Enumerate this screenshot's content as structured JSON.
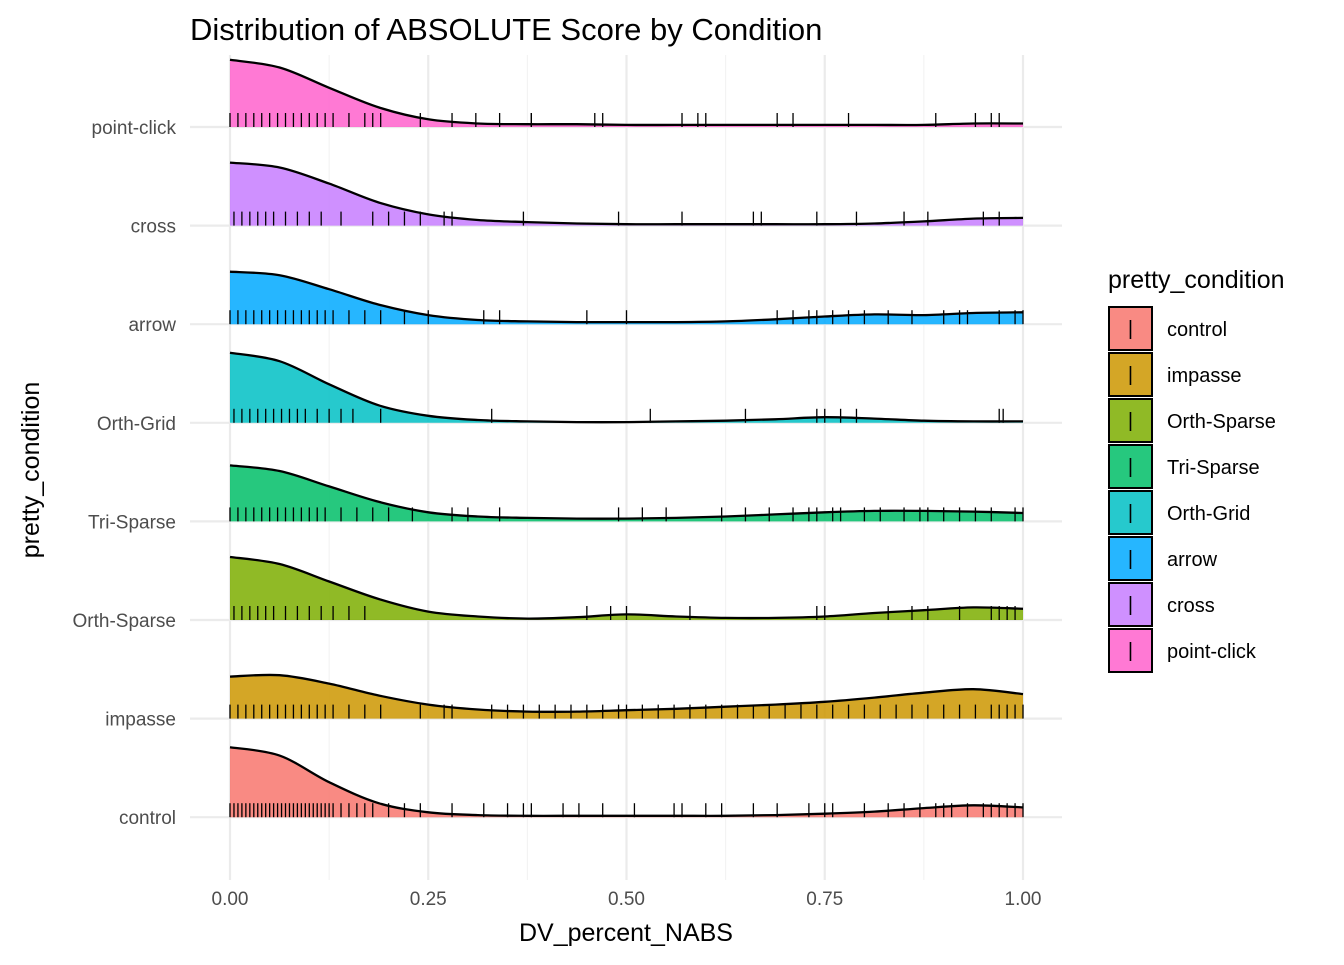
{
  "chart_data": {
    "type": "density_ridgeline",
    "title": "Distribution of ABSOLUTE Score by Condition",
    "xlabel": "DV_percent_NABS",
    "ylabel": "pretty_condition",
    "xlim": [
      0,
      1
    ],
    "x_ticks": [
      "0.00",
      "0.25",
      "0.50",
      "0.75",
      "1.00"
    ],
    "x_tick_values": [
      0,
      0.25,
      0.5,
      0.75,
      1
    ],
    "grid": true,
    "legend": {
      "title": "pretty_condition",
      "position": "right",
      "glyph": "|",
      "entries": [
        "control",
        "impasse",
        "Orth-Sparse",
        "Tri-Sparse",
        "Orth-Grid",
        "arrow",
        "cross",
        "point-click"
      ]
    },
    "x_grid": [
      0,
      0.0625,
      0.125,
      0.1875,
      0.25,
      0.3125,
      0.375,
      0.4375,
      0.5,
      0.5625,
      0.625,
      0.6875,
      0.75,
      0.8125,
      0.875,
      0.9375,
      1
    ],
    "series": [
      {
        "name": "control",
        "color": "#F8766D",
        "density": [
          1.0,
          0.88,
          0.5,
          0.2,
          0.07,
          0.03,
          0.02,
          0.02,
          0.02,
          0.02,
          0.02,
          0.03,
          0.05,
          0.08,
          0.13,
          0.17,
          0.14
        ],
        "rug": [
          0,
          0.005,
          0.01,
          0.015,
          0.02,
          0.025,
          0.03,
          0.035,
          0.04,
          0.045,
          0.05,
          0.055,
          0.06,
          0.065,
          0.07,
          0.075,
          0.08,
          0.085,
          0.09,
          0.095,
          0.1,
          0.105,
          0.11,
          0.115,
          0.12,
          0.125,
          0.13,
          0.14,
          0.15,
          0.16,
          0.17,
          0.18,
          0.2,
          0.22,
          0.24,
          0.28,
          0.32,
          0.35,
          0.37,
          0.38,
          0.42,
          0.44,
          0.47,
          0.51,
          0.56,
          0.57,
          0.6,
          0.62,
          0.66,
          0.69,
          0.73,
          0.75,
          0.76,
          0.8,
          0.83,
          0.85,
          0.87,
          0.89,
          0.9,
          0.91,
          0.93,
          0.95,
          0.96,
          0.97,
          0.98,
          0.99,
          1.0
        ]
      },
      {
        "name": "impasse",
        "color": "#CD9600",
        "density": [
          0.6,
          0.62,
          0.5,
          0.33,
          0.2,
          0.13,
          0.1,
          0.1,
          0.12,
          0.14,
          0.17,
          0.2,
          0.24,
          0.3,
          0.37,
          0.42,
          0.35
        ],
        "rug": [
          0,
          0.01,
          0.02,
          0.03,
          0.04,
          0.05,
          0.06,
          0.07,
          0.08,
          0.09,
          0.1,
          0.11,
          0.12,
          0.13,
          0.15,
          0.17,
          0.19,
          0.24,
          0.27,
          0.28,
          0.33,
          0.35,
          0.37,
          0.39,
          0.41,
          0.43,
          0.45,
          0.47,
          0.49,
          0.5,
          0.52,
          0.54,
          0.56,
          0.58,
          0.6,
          0.62,
          0.64,
          0.66,
          0.68,
          0.7,
          0.72,
          0.74,
          0.76,
          0.78,
          0.8,
          0.82,
          0.84,
          0.86,
          0.88,
          0.9,
          0.92,
          0.94,
          0.96,
          0.97,
          0.98,
          0.99,
          1.0
        ]
      },
      {
        "name": "Orth-Sparse",
        "color": "#7CAE00",
        "density": [
          0.9,
          0.8,
          0.55,
          0.3,
          0.12,
          0.05,
          0.02,
          0.04,
          0.08,
          0.05,
          0.03,
          0.03,
          0.05,
          0.1,
          0.14,
          0.18,
          0.16
        ],
        "rug": [
          0.005,
          0.015,
          0.025,
          0.035,
          0.045,
          0.055,
          0.07,
          0.085,
          0.1,
          0.115,
          0.13,
          0.15,
          0.17,
          0.45,
          0.48,
          0.5,
          0.58,
          0.74,
          0.75,
          0.83,
          0.86,
          0.88,
          0.92,
          0.96,
          0.97,
          0.98,
          0.99
        ]
      },
      {
        "name": "Tri-Sparse",
        "color": "#00BE67",
        "density": [
          0.8,
          0.72,
          0.5,
          0.28,
          0.13,
          0.07,
          0.05,
          0.04,
          0.04,
          0.05,
          0.07,
          0.1,
          0.13,
          0.15,
          0.15,
          0.14,
          0.12
        ],
        "rug": [
          0,
          0.01,
          0.02,
          0.03,
          0.04,
          0.05,
          0.06,
          0.07,
          0.08,
          0.09,
          0.1,
          0.11,
          0.12,
          0.14,
          0.16,
          0.18,
          0.2,
          0.23,
          0.28,
          0.3,
          0.34,
          0.49,
          0.52,
          0.55,
          0.62,
          0.65,
          0.68,
          0.71,
          0.73,
          0.74,
          0.76,
          0.77,
          0.8,
          0.82,
          0.85,
          0.87,
          0.88,
          0.9,
          0.92,
          0.94,
          0.96,
          0.99,
          1.0
        ]
      },
      {
        "name": "Orth-Grid",
        "color": "#00BFC4",
        "density": [
          1.0,
          0.88,
          0.55,
          0.25,
          0.1,
          0.04,
          0.02,
          0.01,
          0.01,
          0.02,
          0.03,
          0.05,
          0.08,
          0.06,
          0.03,
          0.02,
          0.02
        ],
        "rug": [
          0.005,
          0.015,
          0.025,
          0.035,
          0.045,
          0.055,
          0.065,
          0.075,
          0.085,
          0.095,
          0.11,
          0.125,
          0.14,
          0.155,
          0.19,
          0.33,
          0.53,
          0.65,
          0.74,
          0.75,
          0.77,
          0.79,
          0.97,
          0.975
        ]
      },
      {
        "name": "arrow",
        "color": "#00A9FF",
        "density": [
          0.75,
          0.7,
          0.5,
          0.28,
          0.13,
          0.06,
          0.04,
          0.03,
          0.03,
          0.03,
          0.04,
          0.07,
          0.11,
          0.14,
          0.13,
          0.16,
          0.17
        ],
        "rug": [
          0,
          0.01,
          0.02,
          0.03,
          0.04,
          0.05,
          0.06,
          0.07,
          0.08,
          0.09,
          0.1,
          0.11,
          0.12,
          0.13,
          0.15,
          0.17,
          0.19,
          0.22,
          0.25,
          0.32,
          0.34,
          0.45,
          0.5,
          0.69,
          0.71,
          0.73,
          0.74,
          0.76,
          0.78,
          0.8,
          0.83,
          0.86,
          0.9,
          0.92,
          0.93,
          0.97,
          0.99,
          1.0
        ]
      },
      {
        "name": "cross",
        "color": "#C77CFF",
        "density": [
          0.9,
          0.83,
          0.6,
          0.33,
          0.16,
          0.08,
          0.05,
          0.03,
          0.02,
          0.02,
          0.02,
          0.02,
          0.02,
          0.03,
          0.06,
          0.1,
          0.11
        ],
        "rug": [
          0.005,
          0.015,
          0.025,
          0.035,
          0.045,
          0.055,
          0.07,
          0.085,
          0.1,
          0.115,
          0.14,
          0.18,
          0.2,
          0.22,
          0.24,
          0.27,
          0.28,
          0.37,
          0.49,
          0.57,
          0.66,
          0.67,
          0.74,
          0.79,
          0.85,
          0.88,
          0.95,
          0.97
        ]
      },
      {
        "name": "point-click",
        "color": "#FF61CC",
        "density": [
          0.96,
          0.85,
          0.56,
          0.28,
          0.11,
          0.05,
          0.04,
          0.04,
          0.03,
          0.03,
          0.03,
          0.03,
          0.03,
          0.03,
          0.03,
          0.05,
          0.05
        ],
        "rug": [
          0,
          0.01,
          0.02,
          0.03,
          0.04,
          0.05,
          0.06,
          0.07,
          0.08,
          0.09,
          0.1,
          0.11,
          0.12,
          0.13,
          0.15,
          0.17,
          0.18,
          0.19,
          0.24,
          0.28,
          0.31,
          0.34,
          0.38,
          0.38,
          0.46,
          0.47,
          0.57,
          0.59,
          0.6,
          0.69,
          0.71,
          0.78,
          0.89,
          0.94,
          0.96,
          0.97
        ]
      }
    ]
  }
}
